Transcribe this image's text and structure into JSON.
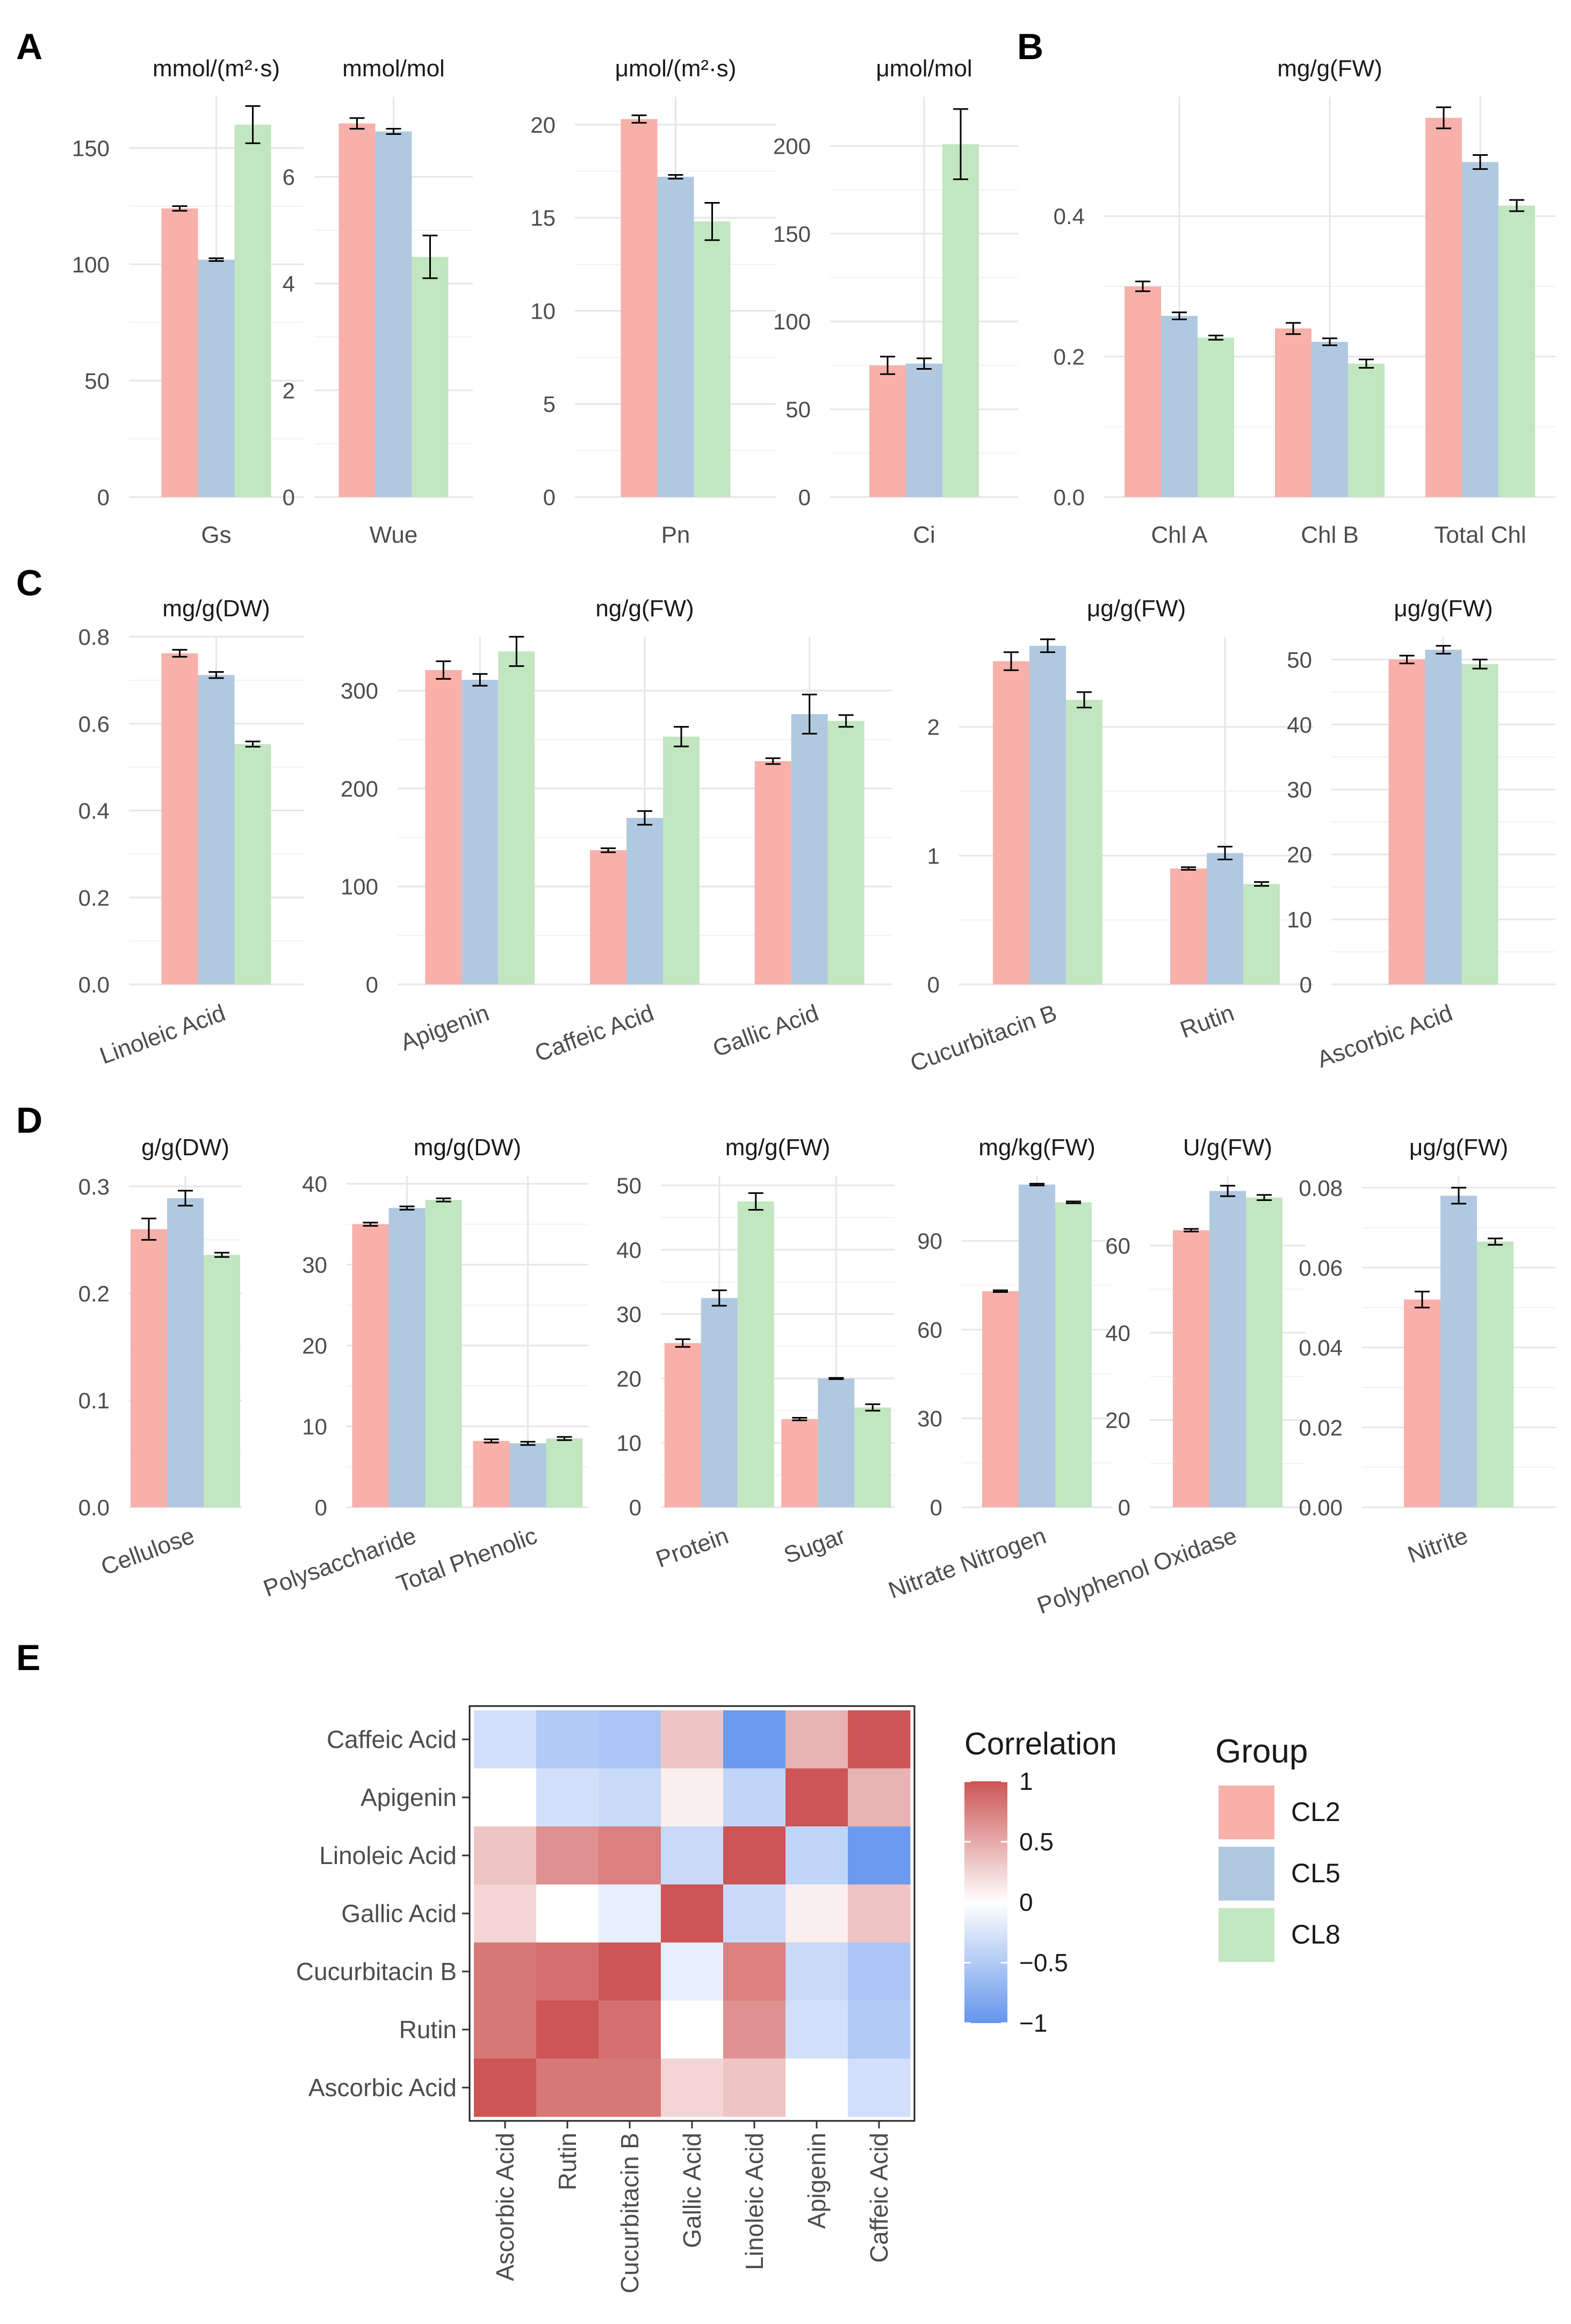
{
  "groups": [
    {
      "name": "CL2",
      "color": "#F8B0AA"
    },
    {
      "name": "CL5",
      "color": "#B0C9E1"
    },
    {
      "name": "CL8",
      "color": "#C2E6C0"
    }
  ],
  "panel_labels": [
    "A",
    "B",
    "C",
    "D",
    "E"
  ],
  "chart_data": [
    {
      "type": "bar",
      "panel": "A",
      "title": "mmol/(m²·s)",
      "ylim": [
        0,
        172
      ],
      "yticks": [
        0,
        50,
        100,
        150
      ],
      "categories": [
        "Gs"
      ],
      "series": [
        {
          "name": "CL2",
          "values": [
            124
          ],
          "err": [
            1
          ]
        },
        {
          "name": "CL5",
          "values": [
            102
          ],
          "err": [
            0.6
          ]
        },
        {
          "name": "CL8",
          "values": [
            160
          ],
          "err": [
            8
          ]
        }
      ]
    },
    {
      "type": "bar",
      "panel": "A",
      "title": "mmol/mol",
      "ylim": [
        0,
        7.5
      ],
      "yticks": [
        0,
        2,
        4,
        6
      ],
      "categories": [
        "Wue"
      ],
      "series": [
        {
          "name": "CL2",
          "values": [
            7.0
          ],
          "err": [
            0.1
          ]
        },
        {
          "name": "CL5",
          "values": [
            6.85
          ],
          "err": [
            0.05
          ]
        },
        {
          "name": "CL8",
          "values": [
            4.5
          ],
          "err": [
            0.4
          ]
        }
      ]
    },
    {
      "type": "bar",
      "panel": "A",
      "title": "μmol/(m²·s)",
      "ylim": [
        0,
        21.5
      ],
      "yticks": [
        0,
        5,
        10,
        15,
        20
      ],
      "categories": [
        "Pn"
      ],
      "series": [
        {
          "name": "CL2",
          "values": [
            20.3
          ],
          "err": [
            0.2
          ]
        },
        {
          "name": "CL5",
          "values": [
            17.2
          ],
          "err": [
            0.1
          ]
        },
        {
          "name": "CL8",
          "values": [
            14.8
          ],
          "err": [
            1
          ]
        }
      ]
    },
    {
      "type": "bar",
      "panel": "A",
      "title": "μmol/mol",
      "ylim": [
        0,
        228
      ],
      "yticks": [
        0,
        50,
        100,
        150,
        200
      ],
      "categories": [
        "Ci"
      ],
      "series": [
        {
          "name": "CL2",
          "values": [
            75
          ],
          "err": [
            5
          ]
        },
        {
          "name": "CL5",
          "values": [
            76
          ],
          "err": [
            3
          ]
        },
        {
          "name": "CL8",
          "values": [
            201
          ],
          "err": [
            20
          ]
        }
      ]
    },
    {
      "type": "bar",
      "panel": "B",
      "title": "mg/g(FW)",
      "ylim": [
        0,
        0.57
      ],
      "yticks": [
        0,
        0.2,
        0.4
      ],
      "yticklabels": [
        "0.0",
        "0.2",
        "0.4"
      ],
      "categories": [
        "Chl A",
        "Chl B",
        "Total Chl"
      ],
      "series": [
        {
          "name": "CL2",
          "values": [
            0.3,
            0.24,
            0.54
          ],
          "err": [
            0.007,
            0.008,
            0.015
          ]
        },
        {
          "name": "CL5",
          "values": [
            0.258,
            0.221,
            0.477
          ],
          "err": [
            0.005,
            0.005,
            0.01
          ]
        },
        {
          "name": "CL8",
          "values": [
            0.227,
            0.19,
            0.415
          ],
          "err": [
            0.003,
            0.006,
            0.008
          ]
        }
      ]
    },
    {
      "type": "bar",
      "panel": "C",
      "title": "mg/g(DW)",
      "ylim": [
        0,
        0.8
      ],
      "yticks": [
        0,
        0.2,
        0.4,
        0.6,
        0.8
      ],
      "yticklabels": [
        "0.0",
        "0.2",
        "0.4",
        "0.6",
        "0.8"
      ],
      "categories": [
        "Linoleic Acid"
      ],
      "series": [
        {
          "name": "CL2",
          "values": [
            0.762
          ],
          "err": [
            0.008
          ]
        },
        {
          "name": "CL5",
          "values": [
            0.712
          ],
          "err": [
            0.007
          ]
        },
        {
          "name": "CL8",
          "values": [
            0.553
          ],
          "err": [
            0.006
          ]
        }
      ]
    },
    {
      "type": "bar",
      "panel": "C",
      "title": "ng/g(FW)",
      "ylim": [
        0,
        355
      ],
      "yticks": [
        0,
        100,
        200,
        300
      ],
      "categories": [
        "Apigenin",
        "Caffeic Acid",
        "Gallic Acid"
      ],
      "series": [
        {
          "name": "CL2",
          "values": [
            321,
            137,
            228
          ],
          "err": [
            9,
            2,
            3
          ]
        },
        {
          "name": "CL5",
          "values": [
            311,
            170,
            276
          ],
          "err": [
            6,
            7,
            20
          ]
        },
        {
          "name": "CL8",
          "values": [
            340,
            253,
            269
          ],
          "err": [
            15,
            10,
            6
          ]
        }
      ]
    },
    {
      "type": "bar",
      "panel": "C",
      "title": "μg/g(FW)",
      "ylim": [
        0,
        2.7
      ],
      "yticks": [
        0,
        1,
        2
      ],
      "categories": [
        "Cucurbitacin B",
        "Rutin"
      ],
      "series": [
        {
          "name": "CL2",
          "values": [
            2.51,
            0.9
          ],
          "err": [
            0.07,
            0.01
          ]
        },
        {
          "name": "CL5",
          "values": [
            2.63,
            1.02
          ],
          "err": [
            0.05,
            0.05
          ]
        },
        {
          "name": "CL8",
          "values": [
            2.21,
            0.78
          ],
          "err": [
            0.06,
            0.015
          ]
        }
      ]
    },
    {
      "type": "bar",
      "panel": "C",
      "title": "μg/g(FW)",
      "ylim": [
        0,
        53.5
      ],
      "yticks": [
        0,
        10,
        20,
        30,
        40,
        50
      ],
      "categories": [
        "Ascorbic Acid"
      ],
      "series": [
        {
          "name": "CL2",
          "values": [
            50
          ],
          "err": [
            0.6
          ]
        },
        {
          "name": "CL5",
          "values": [
            51.5
          ],
          "err": [
            0.6
          ]
        },
        {
          "name": "CL8",
          "values": [
            49.3
          ],
          "err": [
            0.7
          ]
        }
      ]
    },
    {
      "type": "bar",
      "panel": "D",
      "title": "g/g(DW)",
      "ylim": [
        0,
        0.31
      ],
      "yticks": [
        0,
        0.1,
        0.2,
        0.3
      ],
      "yticklabels": [
        "0.0",
        "0.1",
        "0.2",
        "0.3"
      ],
      "categories": [
        "Cellulose"
      ],
      "series": [
        {
          "name": "CL2",
          "values": [
            0.26
          ],
          "err": [
            0.01
          ]
        },
        {
          "name": "CL5",
          "values": [
            0.289
          ],
          "err": [
            0.007
          ]
        },
        {
          "name": "CL8",
          "values": [
            0.236
          ],
          "err": [
            0.002
          ]
        }
      ]
    },
    {
      "type": "bar",
      "panel": "D",
      "title": "mg/g(DW)",
      "ylim": [
        0,
        41
      ],
      "yticks": [
        0,
        10,
        20,
        30,
        40
      ],
      "categories": [
        "Polysaccharide",
        "Total Phenolic"
      ],
      "series": [
        {
          "name": "CL2",
          "values": [
            35,
            8.2
          ],
          "err": [
            0.2,
            0.2
          ]
        },
        {
          "name": "CL5",
          "values": [
            37,
            7.9
          ],
          "err": [
            0.2,
            0.2
          ]
        },
        {
          "name": "CL8",
          "values": [
            38,
            8.5
          ],
          "err": [
            0.2,
            0.2
          ]
        }
      ]
    },
    {
      "type": "bar",
      "panel": "D",
      "title": "mg/g(FW)",
      "ylim": [
        0,
        51.5
      ],
      "yticks": [
        0,
        10,
        20,
        30,
        40,
        50
      ],
      "categories": [
        "Protein",
        "Sugar"
      ],
      "series": [
        {
          "name": "CL2",
          "values": [
            25.5,
            13.7
          ],
          "err": [
            0.6,
            0.2
          ]
        },
        {
          "name": "CL5",
          "values": [
            32.5,
            20
          ],
          "err": [
            1.2,
            0.1
          ]
        },
        {
          "name": "CL8",
          "values": [
            47.5,
            15.5
          ],
          "err": [
            1.3,
            0.5
          ]
        }
      ]
    },
    {
      "type": "bar",
      "panel": "D",
      "title": "mg/kg(FW)",
      "ylim": [
        0,
        112
      ],
      "yticks": [
        0,
        30,
        60,
        90
      ],
      "categories": [
        "Nitrate Nitrogen"
      ],
      "series": [
        {
          "name": "CL2",
          "values": [
            73
          ],
          "err": [
            0.3
          ]
        },
        {
          "name": "CL5",
          "values": [
            109
          ],
          "err": [
            0.3
          ]
        },
        {
          "name": "CL8",
          "values": [
            103
          ],
          "err": [
            0.3
          ]
        }
      ]
    },
    {
      "type": "bar",
      "panel": "D",
      "title": "U/g(FW)",
      "ylim": [
        0,
        76
      ],
      "yticks": [
        0,
        20,
        40,
        60
      ],
      "categories": [
        "Polyphenol Oxidase"
      ],
      "series": [
        {
          "name": "CL2",
          "values": [
            63.5
          ],
          "err": [
            0.3
          ]
        },
        {
          "name": "CL5",
          "values": [
            72.5
          ],
          "err": [
            1.2
          ]
        },
        {
          "name": "CL8",
          "values": [
            71
          ],
          "err": [
            0.6
          ]
        }
      ]
    },
    {
      "type": "bar",
      "panel": "D",
      "title": "μg/g(FW)",
      "ylim": [
        0,
        0.083
      ],
      "yticks": [
        0,
        0.02,
        0.04,
        0.06,
        0.08
      ],
      "yticklabels": [
        "0.00",
        "0.02",
        "0.04",
        "0.06",
        "0.08"
      ],
      "categories": [
        "Nitrite"
      ],
      "series": [
        {
          "name": "CL2",
          "values": [
            0.052
          ],
          "err": [
            0.002
          ]
        },
        {
          "name": "CL5",
          "values": [
            0.078
          ],
          "err": [
            0.002
          ]
        },
        {
          "name": "CL8",
          "values": [
            0.0665
          ],
          "err": [
            0.0008
          ]
        }
      ]
    },
    {
      "type": "heatmap",
      "panel": "E",
      "rows": [
        "Caffeic Acid",
        "Apigenin",
        "Linoleic Acid",
        "Gallic Acid",
        "Cucurbitacin B",
        "Rutin",
        "Ascorbic Acid"
      ],
      "cols": [
        "Ascorbic Acid",
        "Rutin",
        "Cucurbitacin B",
        "Gallic Acid",
        "Linoleic Acid",
        "Apigenin",
        "Caffeic Acid"
      ],
      "values": [
        [
          -0.3,
          -0.5,
          -0.55,
          0.35,
          -0.95,
          0.45,
          1.0
        ],
        [
          0.0,
          -0.3,
          -0.35,
          0.1,
          -0.4,
          1.0,
          0.45
        ],
        [
          0.35,
          0.65,
          0.75,
          -0.35,
          1.0,
          -0.4,
          -0.95
        ],
        [
          0.25,
          0.0,
          -0.15,
          1.0,
          -0.35,
          0.1,
          0.35
        ],
        [
          0.8,
          0.85,
          1.0,
          -0.15,
          0.75,
          -0.35,
          -0.55
        ],
        [
          0.8,
          1.0,
          0.85,
          0.0,
          0.65,
          -0.3,
          -0.5
        ],
        [
          1.0,
          0.8,
          0.8,
          0.25,
          0.35,
          0.0,
          -0.3
        ]
      ],
      "legend_title": "Correlation",
      "colorbar_ticks": [
        "1",
        "0.5",
        "0",
        "−0.5",
        "−1"
      ],
      "colorbar_values": [
        1,
        0.5,
        0,
        -0.5,
        -1
      ],
      "group_legend_title": "Group",
      "low_color": "#6495ED",
      "mid_color": "#FFFFFF",
      "high_color": "#CD5555"
    }
  ]
}
